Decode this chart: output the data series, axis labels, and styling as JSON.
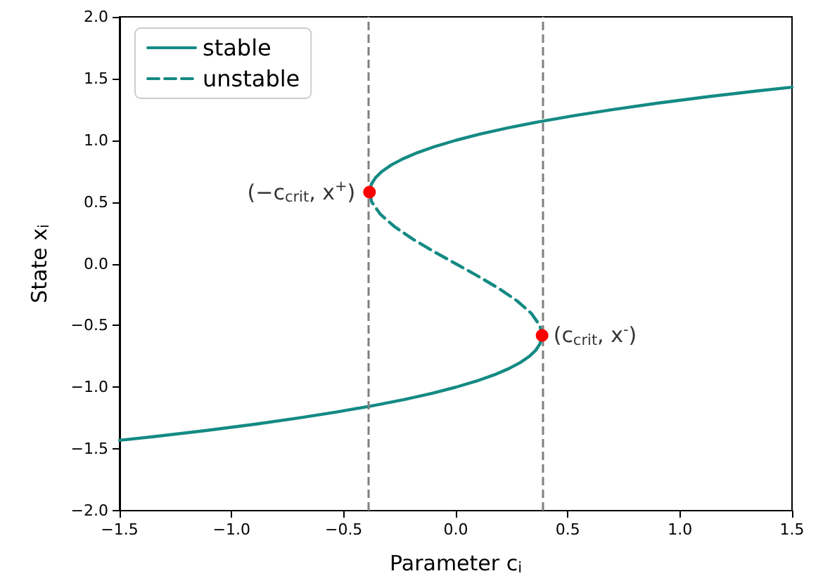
{
  "chart_data": {
    "type": "line",
    "xlabel": "Parameter c$_{i}$",
    "ylabel": "State x$_{i}$",
    "xlim": [
      -1.5,
      1.5
    ],
    "ylim": [
      -2,
      2
    ],
    "xticks": [
      {
        "value": -1.5,
        "label": "−1.5"
      },
      {
        "value": -1,
        "label": "−1.0"
      },
      {
        "value": -0.5,
        "label": "−0.5"
      },
      {
        "value": 0,
        "label": "0.0"
      },
      {
        "value": 0.5,
        "label": "0.5"
      },
      {
        "value": 1,
        "label": "1.0"
      },
      {
        "value": 1.5,
        "label": "1.5"
      }
    ],
    "yticks": [
      {
        "value": -2,
        "label": "−2.0"
      },
      {
        "value": -1.5,
        "label": "−1.5"
      },
      {
        "value": -1,
        "label": "−1.0"
      },
      {
        "value": -0.5,
        "label": "−0.5"
      },
      {
        "value": 0,
        "label": "0.0"
      },
      {
        "value": 0.5,
        "label": "0.5"
      },
      {
        "value": 1,
        "label": "1.0"
      },
      {
        "value": 1.5,
        "label": "1.5"
      },
      {
        "value": 2,
        "label": "2.0"
      }
    ],
    "series": [
      {
        "name": "stable",
        "color": "#148a84",
        "line_style": "solid",
        "x": [
          -0.385,
          -0.384,
          -0.375,
          -0.357,
          -0.328,
          -0.288,
          -0.236,
          -0.171,
          -0.093,
          0,
          0.108,
          0.231,
          0.371,
          0.528,
          0.703,
          0.897,
          1.11,
          1.344,
          1.5
        ],
        "values": [
          0.58,
          0.6,
          0.65,
          0.7,
          0.75,
          0.8,
          0.85,
          0.9,
          0.95,
          1.0,
          1.05,
          1.1,
          1.15,
          1.2,
          1.25,
          1.3,
          1.35,
          1.4,
          1.43
        ]
      },
      {
        "name": "unstable",
        "color": "#148a84",
        "line_style": "dashed",
        "x": [
          -0.385,
          -0.375,
          -0.336,
          -0.273,
          -0.192,
          -0.099,
          0,
          0.099,
          0.192,
          0.273,
          0.336,
          0.375,
          0.385
        ],
        "values": [
          0.58,
          0.5,
          0.4,
          0.3,
          0.2,
          0.1,
          0,
          -0.1,
          -0.2,
          -0.3,
          -0.4,
          -0.5,
          -0.58
        ]
      },
      {
        "color": "#148a84",
        "line_style": "solid",
        "x": [
          0.385,
          0.384,
          0.375,
          0.357,
          0.328,
          0.288,
          0.236,
          0.171,
          0.093,
          0,
          -0.108,
          -0.231,
          -0.371,
          -0.528,
          -0.703,
          -0.897,
          -1.11,
          -1.344,
          -1.5
        ],
        "values": [
          -0.58,
          -0.6,
          -0.65,
          -0.7,
          -0.75,
          -0.8,
          -0.85,
          -0.9,
          -0.95,
          -1.0,
          -1.05,
          -1.1,
          -1.15,
          -1.2,
          -1.25,
          -1.3,
          -1.35,
          -1.4,
          -1.43
        ]
      },
      {
        "type": "scatter",
        "color": "#ff0000",
        "marker": "circle",
        "x": [
          -0.385,
          0.385
        ],
        "values": [
          0.58,
          -0.58
        ]
      }
    ],
    "ref_lines": [
      {
        "axis": "x",
        "value": -0.385,
        "color": "#808080",
        "line_style": "dashed"
      },
      {
        "axis": "x",
        "value": 0.385,
        "color": "#808080",
        "line_style": "dashed"
      }
    ],
    "annotations": [
      {
        "text": "(−c$_{crit}$, x$^{+}$)",
        "x": -0.385,
        "y": 0.58
      },
      {
        "text": "(c$_{crit}$, x$^{-}$)",
        "x": 0.385,
        "y": -0.58
      }
    ],
    "marker": "none",
    "grid": false,
    "legend": "top left"
  }
}
